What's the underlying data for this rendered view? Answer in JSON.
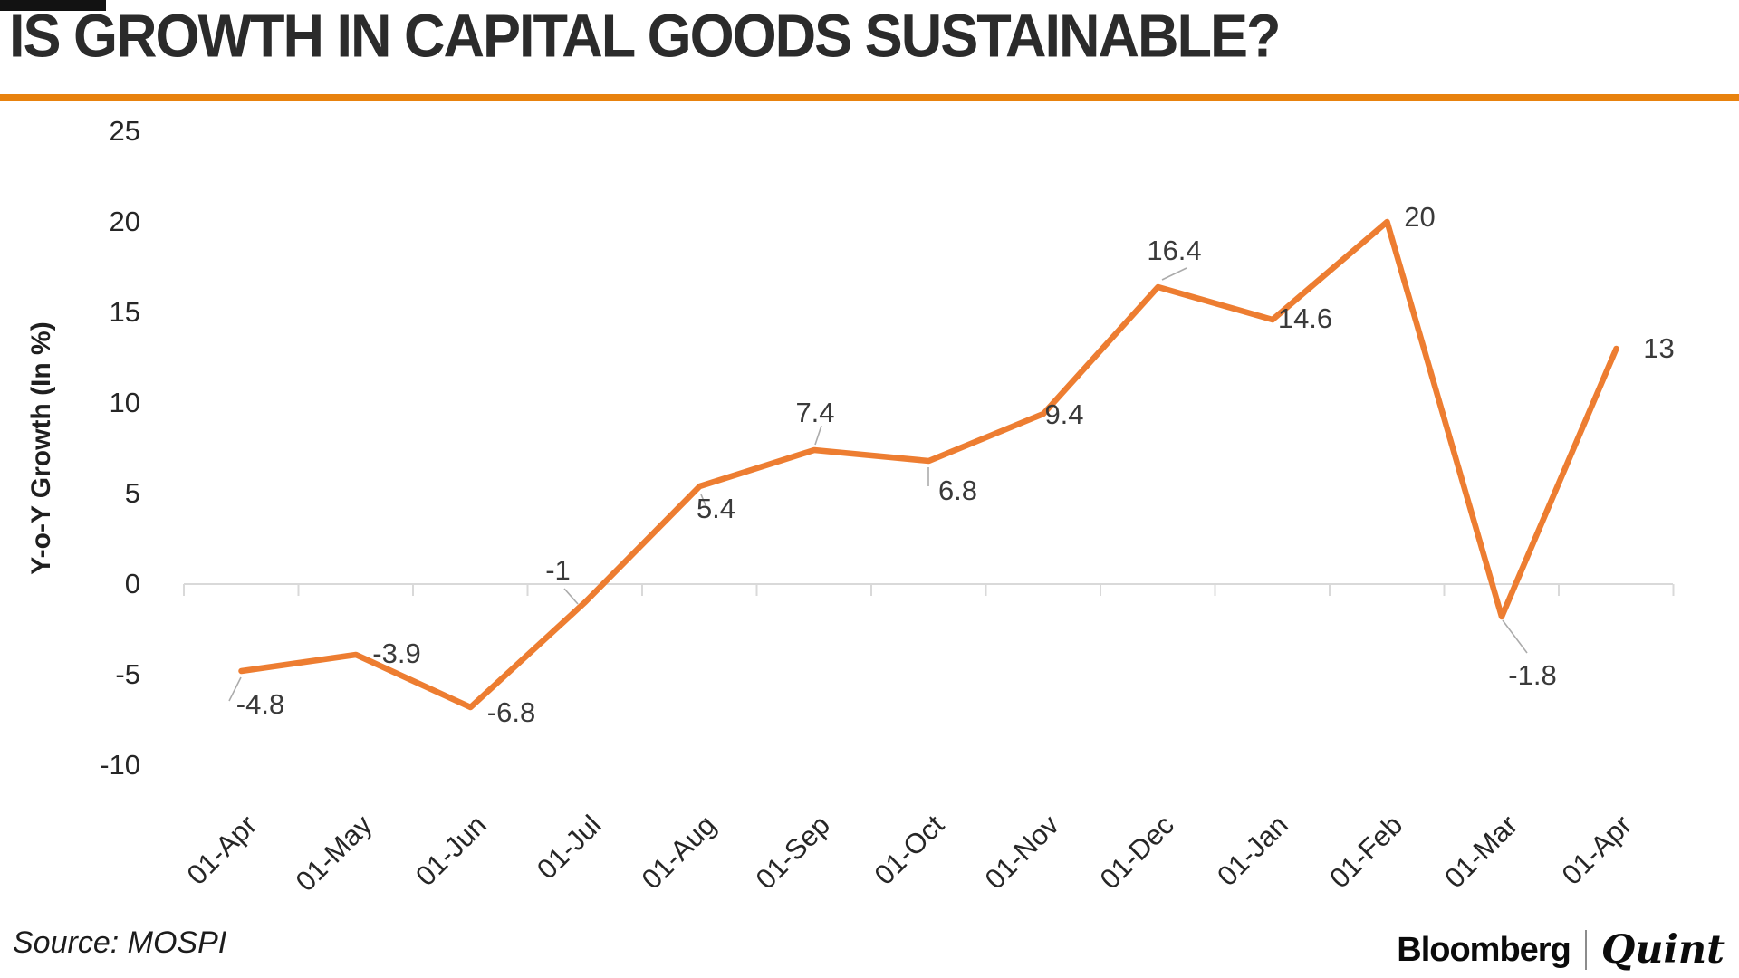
{
  "page": {
    "title": "IS GROWTH IN CAPITAL GOODS SUSTAINABLE?",
    "source": "Source: MOSPI",
    "brand": {
      "name1": "Bloomberg",
      "separator": "|",
      "name2": "Quint"
    },
    "accent_color": "#ED7D31",
    "rule_color": "#E8820E"
  },
  "chart_data": {
    "type": "line",
    "title": "IS GROWTH IN CAPITAL GOODS SUSTAINABLE?",
    "xlabel": "",
    "ylabel": "Y-o-Y Growth (In %)",
    "categories": [
      "01-Apr",
      "01-May",
      "01-Jun",
      "01-Jul",
      "01-Aug",
      "01-Sep",
      "01-Oct",
      "01-Nov",
      "01-Dec",
      "01-Jan",
      "01-Feb",
      "01-Mar",
      "01-Apr"
    ],
    "values": [
      -4.8,
      -3.9,
      -6.8,
      -1,
      5.4,
      7.4,
      6.8,
      9.4,
      16.4,
      14.6,
      20,
      -1.8,
      13
    ],
    "data_labels": [
      "-4.8",
      "-3.9",
      "-6.8",
      "-1",
      "5.4",
      "7.4",
      "6.8",
      "9.4",
      "16.4",
      "14.6",
      "20",
      "-1.8",
      "13"
    ],
    "y_ticks": [
      "25",
      "20",
      "15",
      "10",
      "5",
      "0",
      "-5",
      "-10"
    ],
    "ylim": [
      -10,
      25
    ],
    "grid": "zero-axis line only, light gray, with tick marks at category boundaries",
    "legend": "none",
    "line_color": "#ED7D31",
    "source": "Source: MOSPI"
  }
}
